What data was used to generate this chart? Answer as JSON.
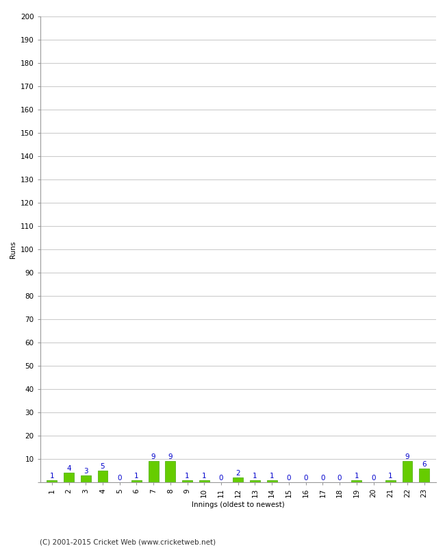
{
  "innings": [
    1,
    2,
    3,
    4,
    5,
    6,
    7,
    8,
    9,
    10,
    11,
    12,
    13,
    14,
    15,
    16,
    17,
    18,
    19,
    20,
    21,
    22,
    23
  ],
  "runs": [
    1,
    4,
    3,
    5,
    0,
    1,
    9,
    9,
    1,
    1,
    0,
    2,
    1,
    1,
    0,
    0,
    0,
    0,
    1,
    0,
    1,
    9,
    6
  ],
  "bar_color": "#66cc00",
  "bar_edge_color": "#44aa00",
  "label_color": "#0000cc",
  "xlabel": "Innings (oldest to newest)",
  "ylabel": "Runs",
  "ylim": [
    0,
    200
  ],
  "yticks": [
    0,
    10,
    20,
    30,
    40,
    50,
    60,
    70,
    80,
    90,
    100,
    110,
    120,
    130,
    140,
    150,
    160,
    170,
    180,
    190,
    200
  ],
  "footer": "(C) 2001-2015 Cricket Web (www.cricketweb.net)",
  "background_color": "#ffffff",
  "grid_color": "#cccccc",
  "label_fontsize": 7.5,
  "axis_fontsize": 7.5,
  "footer_fontsize": 7.5,
  "ylabel_fontsize": 7.5,
  "xlabel_fontsize": 7.5
}
